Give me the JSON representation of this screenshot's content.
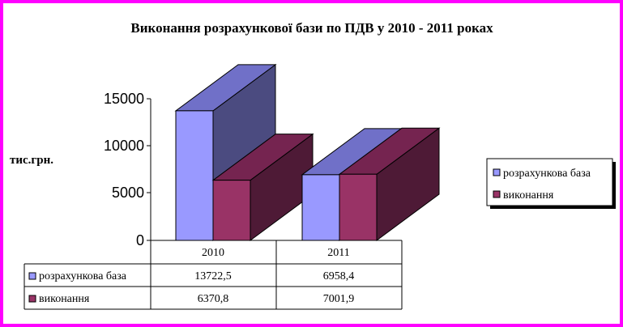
{
  "chart_data": {
    "type": "bar",
    "title": "Виконання розрахункової бази по ПДВ у 2010 - 2011 роках",
    "ylabel": "тис.грн.",
    "categories": [
      "2010",
      "2011"
    ],
    "ylim": [
      0,
      15000
    ],
    "yticks": [
      "15000",
      "10000",
      "5000",
      "0"
    ],
    "series": [
      {
        "name": "розрахункова база",
        "values": [
          13722.5,
          6958.4
        ],
        "labels": [
          "13722,5",
          "6958,4"
        ],
        "color": "#9999ff"
      },
      {
        "name": "виконання",
        "values": [
          6370.8,
          7001.9
        ],
        "labels": [
          "6370,8",
          "7001,9"
        ],
        "color": "#993366"
      }
    ],
    "legend_position": "right",
    "data_table": true,
    "grid": false
  },
  "colors": {
    "frame": "#ff00ff"
  }
}
